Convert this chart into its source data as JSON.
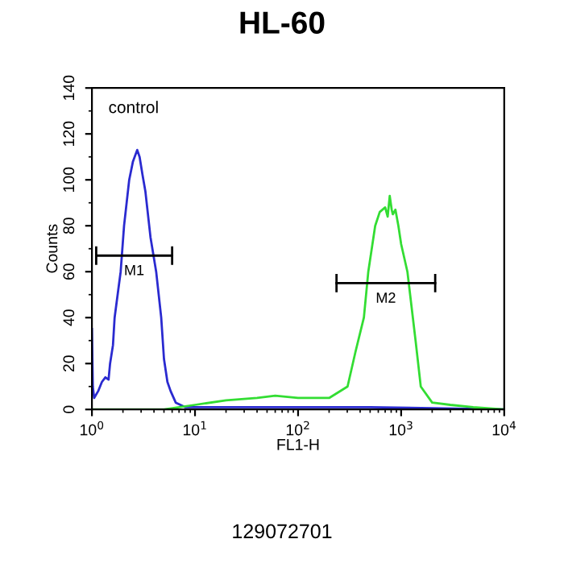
{
  "chart_data": {
    "type": "line",
    "title": "HL-60",
    "xlabel": "FL1-H",
    "ylabel": "Counts",
    "log": "x",
    "xlim": [
      1,
      10000
    ],
    "ylim": [
      0,
      140
    ],
    "xticks": [
      {
        "value": 1,
        "label": "10$^{0}$"
      },
      {
        "value": 10,
        "label": "10$^{1}$"
      },
      {
        "value": 100,
        "label": "10$^{2}$"
      },
      {
        "value": 1000,
        "label": "10$^{3}$"
      },
      {
        "value": 10000,
        "label": "10$^{4}$"
      }
    ],
    "yticks": [
      0,
      20,
      40,
      60,
      80,
      100,
      120,
      140
    ],
    "grid": false,
    "legend": false,
    "series": [
      {
        "color": "#2a2ad0",
        "x": [
          1.0,
          1.02,
          1.05,
          1.15,
          1.25,
          1.35,
          1.45,
          1.5,
          1.6,
          1.66,
          1.8,
          1.9,
          2.05,
          2.3,
          2.5,
          2.65,
          2.75,
          2.9,
          3.1,
          3.3,
          3.7,
          4.2,
          4.7,
          5.0,
          5.4,
          5.8,
          6.5,
          8.0,
          10,
          20,
          50,
          100,
          500,
          10000
        ],
        "values": [
          35,
          10,
          5,
          8,
          12,
          14,
          13,
          20,
          28,
          40,
          52,
          60,
          80,
          100,
          108,
          111,
          113,
          110,
          102,
          95,
          75,
          60,
          40,
          22,
          12,
          8,
          3,
          1,
          1,
          1,
          1,
          1,
          1,
          0
        ]
      },
      {
        "color": "#33dd33",
        "x": [
          1.0,
          5,
          10,
          20,
          40,
          60,
          100,
          200,
          302,
          360,
          435,
          480,
          560,
          620,
          700,
          740,
          775,
          810,
          830,
          880,
          940,
          1000,
          1150,
          1380,
          1550,
          2000,
          3000,
          5000,
          10000
        ],
        "values": [
          0,
          0,
          2,
          4,
          5,
          6,
          5,
          5,
          10,
          25,
          40,
          60,
          80,
          86,
          88,
          84,
          93,
          87,
          85,
          87,
          80,
          72,
          60,
          30,
          10,
          3,
          2,
          1,
          0
        ]
      },
      {
        "color": "#000000",
        "x": [
          1.1,
          6.0
        ],
        "values": [
          67,
          67
        ],
        "errors": [
          4,
          4
        ]
      },
      {
        "color": "#000000",
        "x": [
          236,
          2140
        ],
        "values": [
          55,
          55
        ],
        "errors": [
          4,
          4
        ]
      }
    ],
    "annotations": [
      "control",
      "M1",
      "M2",
      "129072701"
    ]
  }
}
